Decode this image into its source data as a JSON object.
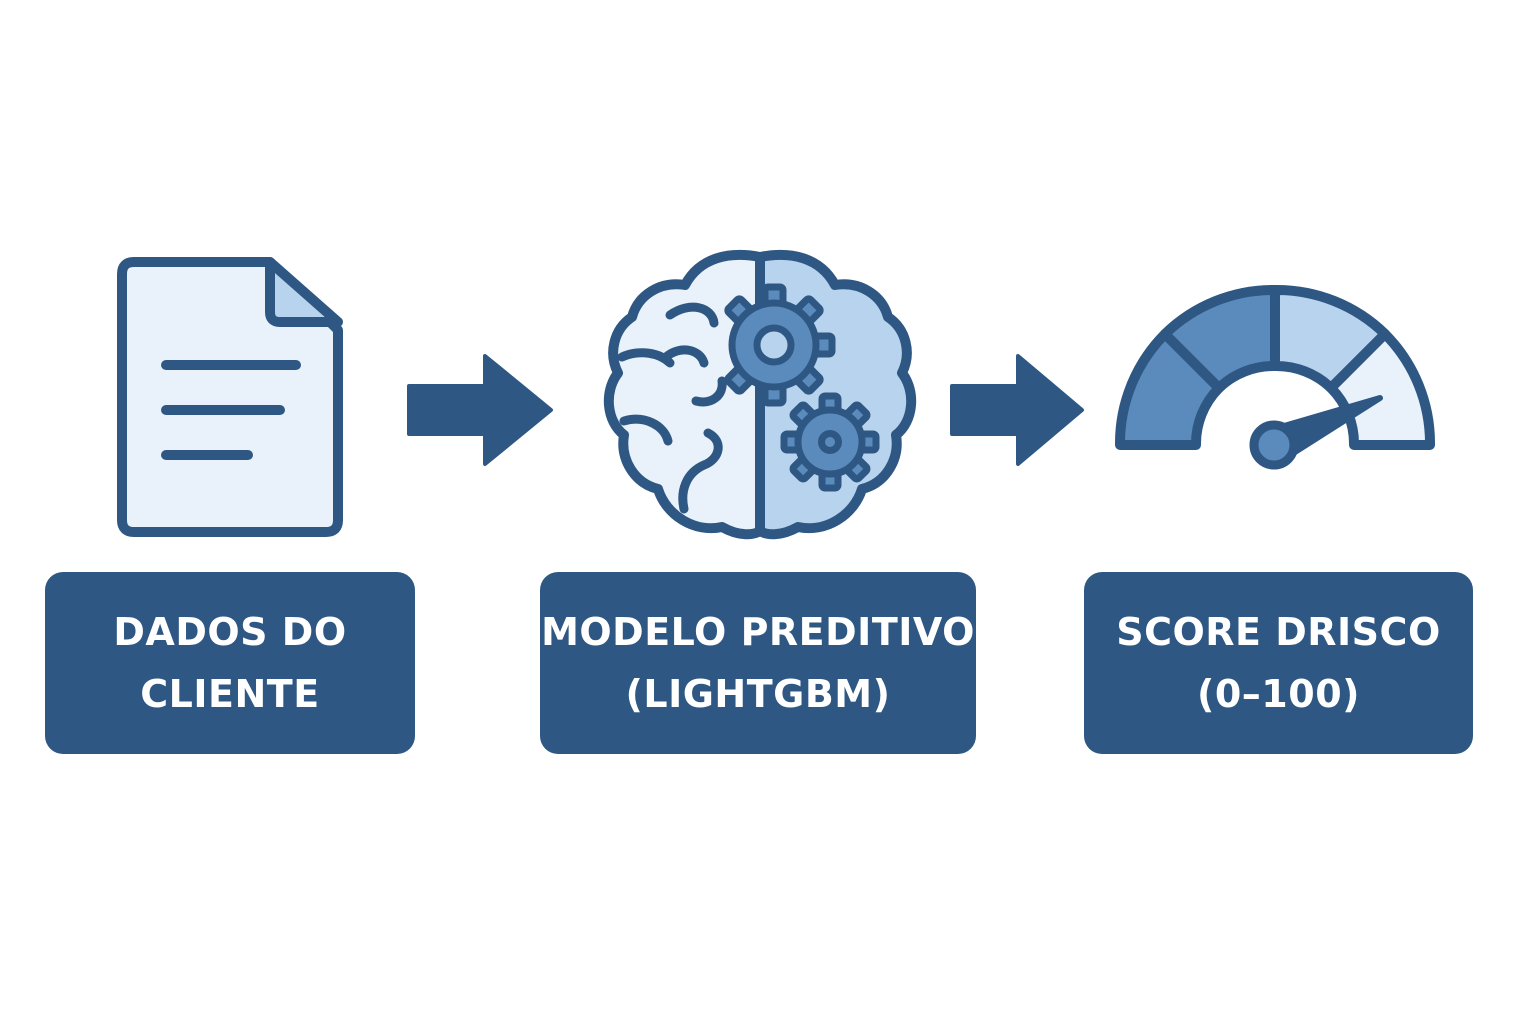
{
  "colors": {
    "primary": "#2e5883",
    "light_fill": "#e9f2fb",
    "mid_fill": "#b8d3ee",
    "accent_fill": "#5b8bbd",
    "background": "#ffffff"
  },
  "steps": [
    {
      "icon": "document-icon",
      "label_lines": [
        "DADOS DO",
        "CLIENTE"
      ]
    },
    {
      "icon": "brain-gears-icon",
      "label_lines": [
        "MODELO PREDITIVO",
        "(LIGHTGBM)"
      ]
    },
    {
      "icon": "speedometer-gauge-icon",
      "label_lines": [
        "SCORE DRISCO",
        "(0–100)"
      ]
    }
  ],
  "connectors": [
    "arrow-right-icon",
    "arrow-right-icon"
  ]
}
